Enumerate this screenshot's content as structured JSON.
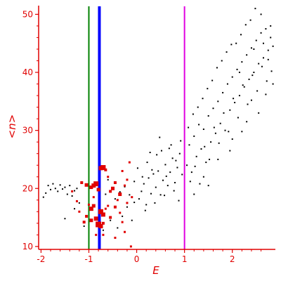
{
  "chart_data": {
    "type": "scatter",
    "title": "",
    "xlabel": "E",
    "ylabel": "<n>",
    "xlim": [
      -2.05,
      2.9
    ],
    "ylim": [
      9.5,
      51.5
    ],
    "x_ticks": [
      -2,
      -1,
      0,
      1,
      2
    ],
    "y_ticks": [
      10,
      20,
      30,
      40,
      50
    ],
    "grid": false,
    "legend": "none",
    "colors": {
      "axis": "#e00000",
      "data_black": "#000000",
      "data_red": "#e00000",
      "line_green": "#008000",
      "line_blue": "#0000ff",
      "line_magenta": "#e000e0"
    },
    "vertical_lines": [
      {
        "x": -1.0,
        "color": "#008000",
        "width": 2
      },
      {
        "x": -0.78,
        "color": "#0000ff",
        "width": 4
      },
      {
        "x": 1.0,
        "color": "#e000e0",
        "width": 2
      }
    ],
    "series": [
      {
        "color": "#000000",
        "marker": "dot",
        "points": [
          [
            -1.95,
            18.5
          ],
          [
            -1.9,
            19.2
          ],
          [
            -1.85,
            20.5
          ],
          [
            -1.8,
            19.8
          ],
          [
            -1.75,
            20.8
          ],
          [
            -1.7,
            20.0
          ],
          [
            -1.65,
            19.5
          ],
          [
            -1.6,
            20.6
          ],
          [
            -1.55,
            19.9
          ],
          [
            -1.5,
            20.2
          ],
          [
            -1.45,
            19.0
          ],
          [
            -1.4,
            20.5
          ],
          [
            -1.35,
            18.7
          ],
          [
            -1.3,
            19.6
          ],
          [
            -1.25,
            20.0
          ],
          [
            -1.2,
            17.5
          ],
          [
            -1.5,
            14.8
          ],
          [
            -1.3,
            16.5
          ],
          [
            -1.1,
            13.5
          ],
          [
            -0.7,
            12.8
          ],
          [
            -0.55,
            14.5
          ],
          [
            -0.4,
            13.2
          ],
          [
            -0.3,
            15.2
          ],
          [
            -0.2,
            16.8
          ],
          [
            -0.1,
            14.5
          ],
          [
            -0.05,
            17.6
          ],
          [
            -0.15,
            18.9
          ],
          [
            -0.25,
            20.3
          ],
          [
            -0.35,
            19.4
          ],
          [
            -0.45,
            18.2
          ],
          [
            -0.6,
            21.5
          ],
          [
            -0.65,
            19.0
          ],
          [
            0.05,
            18.2
          ],
          [
            0.1,
            19.5
          ],
          [
            0.15,
            20.8
          ],
          [
            0.2,
            17.2
          ],
          [
            0.25,
            21.8
          ],
          [
            0.3,
            19.1
          ],
          [
            0.35,
            22.5
          ],
          [
            0.4,
            20.2
          ],
          [
            0.45,
            23.0
          ],
          [
            0.5,
            18.9
          ],
          [
            0.55,
            21.4
          ],
          [
            0.6,
            24.1
          ],
          [
            0.65,
            20.5
          ],
          [
            0.7,
            22.8
          ],
          [
            0.75,
            25.2
          ],
          [
            0.8,
            21.0
          ],
          [
            0.85,
            23.6
          ],
          [
            0.9,
            26.0
          ],
          [
            0.95,
            22.4
          ],
          [
            0.12,
            22.0
          ],
          [
            0.22,
            24.5
          ],
          [
            0.32,
            23.2
          ],
          [
            0.42,
            25.8
          ],
          [
            0.52,
            26.5
          ],
          [
            0.62,
            22.1
          ],
          [
            0.72,
            27.5
          ],
          [
            0.82,
            24.8
          ],
          [
            0.92,
            28.2
          ],
          [
            0.18,
            16.2
          ],
          [
            0.38,
            17.5
          ],
          [
            0.58,
            18.8
          ],
          [
            0.78,
            19.6
          ],
          [
            0.88,
            17.9
          ],
          [
            0.28,
            26.2
          ],
          [
            0.48,
            28.8
          ],
          [
            0.68,
            26.9
          ],
          [
            -0.05,
            21.2
          ],
          [
            0.02,
            23.5
          ],
          [
            1.05,
            24.0
          ],
          [
            1.1,
            27.5
          ],
          [
            1.15,
            22.8
          ],
          [
            1.2,
            29.0
          ],
          [
            1.25,
            25.5
          ],
          [
            1.3,
            31.0
          ],
          [
            1.35,
            26.8
          ],
          [
            1.4,
            30.2
          ],
          [
            1.45,
            24.5
          ],
          [
            1.5,
            32.5
          ],
          [
            1.55,
            28.0
          ],
          [
            1.6,
            33.8
          ],
          [
            1.65,
            29.5
          ],
          [
            1.7,
            35.0
          ],
          [
            1.75,
            31.2
          ],
          [
            1.8,
            36.5
          ],
          [
            1.85,
            30.0
          ],
          [
            1.9,
            38.0
          ],
          [
            1.95,
            33.5
          ],
          [
            2.0,
            39.2
          ],
          [
            2.05,
            34.8
          ],
          [
            2.1,
            40.5
          ],
          [
            2.15,
            36.0
          ],
          [
            2.2,
            41.8
          ],
          [
            2.25,
            37.5
          ],
          [
            2.3,
            43.0
          ],
          [
            2.35,
            38.8
          ],
          [
            2.4,
            44.2
          ],
          [
            2.45,
            40.0
          ],
          [
            2.5,
            45.5
          ],
          [
            2.55,
            41.5
          ],
          [
            2.6,
            46.8
          ],
          [
            2.65,
            42.5
          ],
          [
            2.7,
            47.5
          ],
          [
            2.75,
            43.8
          ],
          [
            2.8,
            46.0
          ],
          [
            2.85,
            44.5
          ],
          [
            1.12,
            21.2
          ],
          [
            1.22,
            23.8
          ],
          [
            1.32,
            20.8
          ],
          [
            1.42,
            27.2
          ],
          [
            1.52,
            25.0
          ],
          [
            1.62,
            30.5
          ],
          [
            1.72,
            27.8
          ],
          [
            1.82,
            33.0
          ],
          [
            1.92,
            29.8
          ],
          [
            2.02,
            35.5
          ],
          [
            2.12,
            32.2
          ],
          [
            2.22,
            37.8
          ],
          [
            2.32,
            34.5
          ],
          [
            2.42,
            39.5
          ],
          [
            2.52,
            36.8
          ],
          [
            2.62,
            41.0
          ],
          [
            2.72,
            38.5
          ],
          [
            2.82,
            40.2
          ],
          [
            1.08,
            30.5
          ],
          [
            1.18,
            32.8
          ],
          [
            1.28,
            34.0
          ],
          [
            1.38,
            35.5
          ],
          [
            1.48,
            37.2
          ],
          [
            1.58,
            38.6
          ],
          [
            1.68,
            40.8
          ],
          [
            1.78,
            42.0
          ],
          [
            1.88,
            43.5
          ],
          [
            1.98,
            44.8
          ],
          [
            2.08,
            45.0
          ],
          [
            2.18,
            46.5
          ],
          [
            2.28,
            48.2
          ],
          [
            2.38,
            49.0
          ],
          [
            2.48,
            51.0
          ],
          [
            2.6,
            50.0
          ],
          [
            2.75,
            42.2
          ],
          [
            2.85,
            38.0
          ],
          [
            2.3,
            31.5
          ],
          [
            2.0,
            28.5
          ],
          [
            1.7,
            25.0
          ],
          [
            1.4,
            22.0
          ],
          [
            1.2,
            19.0
          ],
          [
            1.5,
            20.5
          ],
          [
            2.2,
            29.8
          ],
          [
            2.55,
            33.0
          ],
          [
            2.7,
            36.2
          ],
          [
            1.95,
            26.5
          ],
          [
            2.4,
            35.2
          ],
          [
            2.65,
            45.0
          ],
          [
            2.8,
            48.0
          ],
          [
            2.45,
            44.0
          ],
          [
            2.15,
            40.0
          ]
        ]
      },
      {
        "color": "#e00000",
        "marker": "square",
        "points": [
          [
            -0.9,
            20.5,
            6
          ],
          [
            -0.85,
            20.8,
            7
          ],
          [
            -0.95,
            20.2,
            5
          ],
          [
            -1.05,
            20.6,
            5
          ],
          [
            -1.15,
            21.0,
            4
          ],
          [
            -0.8,
            19.8,
            5
          ],
          [
            -0.75,
            23.5,
            6
          ],
          [
            -0.7,
            23.6,
            7
          ],
          [
            -0.65,
            23.2,
            4
          ],
          [
            -0.95,
            16.5,
            6
          ],
          [
            -0.9,
            17.0,
            5
          ],
          [
            -0.75,
            16.0,
            7
          ],
          [
            -0.7,
            15.5,
            6
          ],
          [
            -0.85,
            14.8,
            6
          ],
          [
            -0.95,
            14.5,
            5
          ],
          [
            -1.05,
            15.2,
            4
          ],
          [
            -1.1,
            14.2,
            4
          ],
          [
            -0.8,
            13.8,
            8
          ],
          [
            -0.75,
            13.5,
            6
          ],
          [
            -0.7,
            14.0,
            4
          ],
          [
            -0.55,
            15.0,
            4
          ],
          [
            -0.45,
            16.8,
            4
          ],
          [
            -0.35,
            19.0,
            5
          ],
          [
            -0.5,
            20.0,
            5
          ],
          [
            -0.55,
            19.5,
            4
          ],
          [
            -0.45,
            21.0,
            4
          ],
          [
            -0.25,
            20.5,
            3
          ],
          [
            -0.15,
            24.5,
            3
          ],
          [
            -0.2,
            17.5,
            3
          ],
          [
            -0.4,
            18.0,
            3
          ],
          [
            -0.6,
            17.0,
            3
          ],
          [
            -0.3,
            14.2,
            3
          ],
          [
            -0.25,
            12.5,
            3
          ],
          [
            -0.45,
            11.5,
            3
          ],
          [
            -1.2,
            16.0,
            3
          ],
          [
            -1.25,
            17.8,
            3
          ],
          [
            -0.85,
            12.0,
            3
          ],
          [
            -0.7,
            12.0,
            3
          ],
          [
            -0.1,
            18.5,
            3
          ],
          [
            -0.35,
            15.8,
            3
          ],
          [
            -0.6,
            22.0,
            3
          ],
          [
            -0.9,
            18.5,
            3
          ],
          [
            -1.0,
            17.2,
            3
          ],
          [
            -0.65,
            16.5,
            3
          ],
          [
            -0.2,
            21.5,
            3
          ],
          [
            -0.3,
            23.0,
            3
          ],
          [
            -0.12,
            10.0,
            3
          ],
          [
            -1.35,
            19.5,
            3
          ]
        ]
      }
    ]
  }
}
